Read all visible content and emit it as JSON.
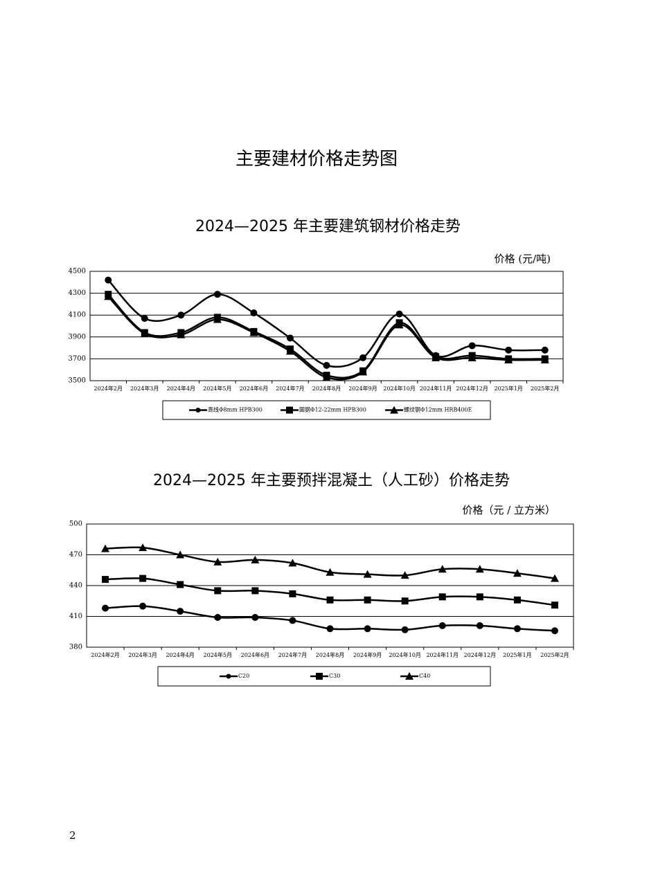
{
  "title": "主要建材价格走势图",
  "page_number": "2",
  "chart_data": [
    {
      "type": "line",
      "title": "2024—2025 年主要建筑钢材价格走势",
      "y_label": "价格 (元/吨)",
      "categories": [
        "2024年2月",
        "2024年3月",
        "2024年4月",
        "2024年5月",
        "2024年6月",
        "2024年7月",
        "2024年8月",
        "2024年9月",
        "2024年10月",
        "2024年11月",
        "2024年12月",
        "2025年1月",
        "2025年2月"
      ],
      "ylim": [
        3500,
        4500
      ],
      "yticks": [
        3500,
        3700,
        3900,
        4100,
        4300,
        4500
      ],
      "grid": true,
      "legend": "bottom",
      "series": [
        {
          "name": "高线Φ8mm HPB300",
          "color": "#000000",
          "marker": "circle",
          "values": [
            4420,
            4070,
            4100,
            4290,
            4120,
            3890,
            3640,
            3710,
            4110,
            3730,
            3820,
            3780,
            3780
          ]
        },
        {
          "name": "圆钢Φ12-22mm HPB300",
          "color": "#000000",
          "marker": "square",
          "values": [
            4290,
            3940,
            3940,
            4080,
            3950,
            3790,
            3550,
            3590,
            4030,
            3720,
            3730,
            3700,
            3700
          ]
        },
        {
          "name": "螺纹钢Φ12mm HRB400E",
          "color": "#000000",
          "marker": "triangle",
          "values": [
            4270,
            3930,
            3920,
            4060,
            3940,
            3770,
            3530,
            3580,
            4010,
            3710,
            3710,
            3690,
            3690
          ]
        }
      ]
    },
    {
      "type": "line",
      "title": "2024—2025 年主要预拌混凝土（人工砂）价格走势",
      "y_label": "价格（元 / 立方米）",
      "categories": [
        "2024年2月",
        "2024年3月",
        "2024年4月",
        "2024年5月",
        "2024年6月",
        "2024年7月",
        "2024年8月",
        "2024年9月",
        "2024年10月",
        "2024年11月",
        "2024年12月",
        "2025年1月",
        "2025年2月"
      ],
      "ylim": [
        380,
        500
      ],
      "yticks": [
        380,
        410,
        440,
        470,
        500
      ],
      "grid": true,
      "legend": "bottom",
      "series": [
        {
          "name": "C20",
          "color": "#000000",
          "marker": "circle",
          "values": [
            418,
            420,
            415,
            409,
            409,
            406,
            398,
            398,
            397,
            401,
            401,
            398,
            396
          ]
        },
        {
          "name": "C30",
          "color": "#000000",
          "marker": "square",
          "values": [
            446,
            447,
            441,
            435,
            435,
            432,
            426,
            426,
            425,
            429,
            429,
            426,
            421
          ]
        },
        {
          "name": "C40",
          "color": "#000000",
          "marker": "triangle",
          "values": [
            476,
            477,
            470,
            463,
            465,
            462,
            453,
            451,
            450,
            456,
            456,
            452,
            447
          ]
        }
      ]
    }
  ]
}
